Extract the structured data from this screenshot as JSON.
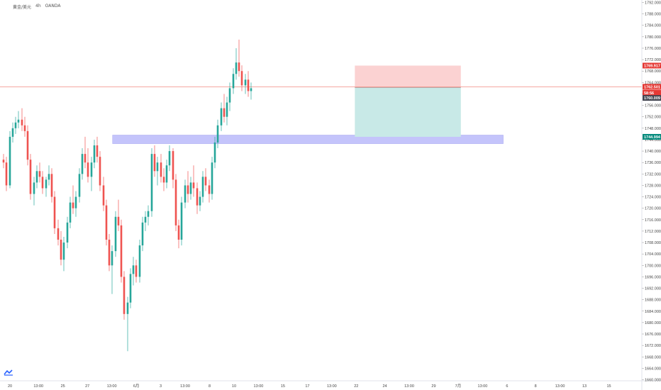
{
  "symbol": {
    "name": "黄金/美元",
    "interval": "4h",
    "source": "OANDA"
  },
  "colors": {
    "up": "#26a69a",
    "down": "#ef5350",
    "zone": "#c4c4fb",
    "risk": "#fbd2d2",
    "reward": "#c8e9e7",
    "price_line": "#f28b82",
    "axis_line": "#e0e3eb",
    "tag_red": "#e53935",
    "tag_green": "#00897b",
    "tag_dark": "#434651"
  },
  "chart_data": {
    "type": "candlestick",
    "y_axis": {
      "ylim": [
        1660,
        1792
      ],
      "ticks": [
        "1792.000",
        "1788.000",
        "1784.000",
        "1780.000",
        "1776.000",
        "1772.000",
        "1768.000",
        "1764.000",
        "1760.000",
        "1756.000",
        "1752.000",
        "1748.000",
        "1744.000",
        "1740.000",
        "1736.000",
        "1732.000",
        "1728.000",
        "1724.000",
        "1720.000",
        "1716.000",
        "1712.000",
        "1708.000",
        "1704.000",
        "1700.000",
        "1696.000",
        "1692.000",
        "1688.000",
        "1684.000",
        "1680.000",
        "1676.000",
        "1672.000",
        "1668.000",
        "1664.000",
        "1660.000"
      ]
    },
    "x_axis": {
      "ticks": [
        {
          "label": "20",
          "bar": 1
        },
        {
          "label": "13:00",
          "bar": 8
        },
        {
          "label": "25",
          "bar": 14
        },
        {
          "label": "27",
          "bar": 20
        },
        {
          "label": "13:00",
          "bar": 26
        },
        {
          "label": "6月",
          "bar": 32
        },
        {
          "label": "3",
          "bar": 38
        },
        {
          "label": "13:00",
          "bar": 44
        },
        {
          "label": "8",
          "bar": 50
        },
        {
          "label": "10",
          "bar": 56
        },
        {
          "label": "13:00",
          "bar": 62
        },
        {
          "label": "15",
          "bar": 68
        },
        {
          "label": "17",
          "bar": 74
        },
        {
          "label": "13:00",
          "bar": 80
        },
        {
          "label": "22",
          "bar": 86
        },
        {
          "label": "24",
          "bar": 93
        },
        {
          "label": "13:00",
          "bar": 99
        },
        {
          "label": "29",
          "bar": 105
        },
        {
          "label": "7月",
          "bar": 111
        },
        {
          "label": "13:00",
          "bar": 117
        },
        {
          "label": "6",
          "bar": 123
        },
        {
          "label": "8",
          "bar": 130
        },
        {
          "label": "13:00",
          "bar": 136
        },
        {
          "label": "13",
          "bar": 142
        },
        {
          "label": "15",
          "bar": 148
        }
      ]
    },
    "candles": [
      [
        1737,
        1739,
        1734,
        1736
      ],
      [
        1736,
        1738,
        1726,
        1728
      ],
      [
        1728,
        1747,
        1727,
        1745
      ],
      [
        1745,
        1750,
        1743,
        1748
      ],
      [
        1748,
        1752,
        1746,
        1750
      ],
      [
        1750,
        1754,
        1748,
        1751
      ],
      [
        1751,
        1755,
        1747,
        1749
      ],
      [
        1749,
        1752,
        1745,
        1747
      ],
      [
        1747,
        1749,
        1735,
        1737
      ],
      [
        1737,
        1739,
        1723,
        1725
      ],
      [
        1725,
        1731,
        1721,
        1729
      ],
      [
        1729,
        1735,
        1727,
        1733
      ],
      [
        1733,
        1736,
        1729,
        1731
      ],
      [
        1731,
        1733,
        1725,
        1727
      ],
      [
        1727,
        1731,
        1724,
        1730
      ],
      [
        1730,
        1735,
        1728,
        1732
      ],
      [
        1732,
        1734,
        1722,
        1724
      ],
      [
        1724,
        1726,
        1711,
        1713
      ],
      [
        1713,
        1716,
        1707,
        1709
      ],
      [
        1709,
        1712,
        1700,
        1702
      ],
      [
        1702,
        1710,
        1698,
        1708
      ],
      [
        1708,
        1717,
        1706,
        1715
      ],
      [
        1715,
        1724,
        1713,
        1722
      ],
      [
        1722,
        1728,
        1718,
        1720
      ],
      [
        1720,
        1726,
        1717,
        1724
      ],
      [
        1724,
        1734,
        1722,
        1732
      ],
      [
        1732,
        1741,
        1730,
        1739
      ],
      [
        1739,
        1745,
        1734,
        1736
      ],
      [
        1736,
        1741,
        1729,
        1731
      ],
      [
        1731,
        1738,
        1726,
        1736
      ],
      [
        1736,
        1744,
        1734,
        1742
      ],
      [
        1742,
        1745,
        1736,
        1738
      ],
      [
        1738,
        1740,
        1726,
        1728
      ],
      [
        1728,
        1731,
        1719,
        1721
      ],
      [
        1721,
        1723,
        1707,
        1709
      ],
      [
        1709,
        1711,
        1698,
        1700
      ],
      [
        1700,
        1707,
        1690,
        1705
      ],
      [
        1705,
        1719,
        1703,
        1717
      ],
      [
        1717,
        1723,
        1712,
        1714
      ],
      [
        1714,
        1716,
        1694,
        1696
      ],
      [
        1696,
        1698,
        1681,
        1683
      ],
      [
        1683,
        1689,
        1670,
        1687
      ],
      [
        1687,
        1699,
        1685,
        1697
      ],
      [
        1697,
        1703,
        1693,
        1700
      ],
      [
        1700,
        1702,
        1694,
        1696
      ],
      [
        1696,
        1709,
        1694,
        1707
      ],
      [
        1707,
        1717,
        1705,
        1715
      ],
      [
        1715,
        1719,
        1712,
        1717
      ],
      [
        1717,
        1721,
        1714,
        1719
      ],
      [
        1719,
        1741,
        1717,
        1739
      ],
      [
        1739,
        1742,
        1731,
        1733
      ],
      [
        1733,
        1738,
        1728,
        1736
      ],
      [
        1736,
        1739,
        1729,
        1731
      ],
      [
        1731,
        1734,
        1726,
        1729
      ],
      [
        1729,
        1737,
        1727,
        1735
      ],
      [
        1735,
        1742,
        1733,
        1740
      ],
      [
        1740,
        1741,
        1727,
        1730
      ],
      [
        1730,
        1732,
        1712,
        1714
      ],
      [
        1714,
        1716,
        1706,
        1709
      ],
      [
        1709,
        1724,
        1707,
        1722
      ],
      [
        1722,
        1730,
        1720,
        1728
      ],
      [
        1728,
        1733,
        1722,
        1725
      ],
      [
        1725,
        1731,
        1723,
        1729
      ],
      [
        1729,
        1735,
        1724,
        1727
      ],
      [
        1727,
        1729,
        1718,
        1721
      ],
      [
        1721,
        1726,
        1719,
        1724
      ],
      [
        1724,
        1733,
        1722,
        1731
      ],
      [
        1731,
        1734,
        1726,
        1728
      ],
      [
        1728,
        1730,
        1722,
        1725
      ],
      [
        1725,
        1738,
        1723,
        1736
      ],
      [
        1736,
        1745,
        1734,
        1743
      ],
      [
        1743,
        1751,
        1741,
        1749
      ],
      [
        1749,
        1757,
        1747,
        1755
      ],
      [
        1755,
        1760,
        1750,
        1752
      ],
      [
        1752,
        1759,
        1749,
        1757
      ],
      [
        1757,
        1764,
        1754,
        1762
      ],
      [
        1762,
        1769,
        1760,
        1767
      ],
      [
        1767,
        1776,
        1765,
        1771
      ],
      [
        1771,
        1779,
        1766,
        1768
      ],
      [
        1768,
        1770,
        1761,
        1763
      ],
      [
        1763,
        1767,
        1760,
        1765
      ],
      [
        1765,
        1768,
        1759,
        1761
      ],
      [
        1761,
        1764,
        1758,
        1762
      ]
    ],
    "candle_x_offsets": [
      0,
      4,
      9,
      13,
      17,
      21,
      26,
      30,
      34,
      38,
      43,
      47,
      51,
      55,
      60,
      64,
      68,
      72,
      77,
      81,
      85,
      90,
      94,
      98,
      102,
      107,
      111,
      115,
      119,
      124,
      128,
      132,
      136,
      141,
      145,
      149,
      153,
      158,
      162,
      166,
      170,
      175,
      179,
      183,
      187,
      192,
      196,
      200,
      204,
      209,
      213,
      217,
      222,
      226,
      230,
      234,
      239,
      243,
      247,
      251,
      256,
      260,
      264,
      268,
      273,
      277,
      281,
      285,
      290,
      294,
      298,
      302,
      307,
      311,
      315,
      319,
      324,
      328,
      332,
      336,
      341,
      345,
      349
    ],
    "zone": {
      "top": 1745.6,
      "bottom": 1742.6,
      "from_bar": 36,
      "to_bar": 165
    },
    "position": {
      "entry": 1762.2,
      "stop": 1769.917,
      "target": 1744.994,
      "from_bar": 116,
      "to_bar": 151
    },
    "price_line": 1762.501,
    "price_tags": [
      {
        "label": "1769.917",
        "value": 1769.917,
        "color": "tag_red"
      },
      {
        "label": "1762.501",
        "value": 1762.501,
        "color": "tag_red"
      },
      {
        "label": "58:56",
        "value": 1760.4,
        "color": "tag_red"
      },
      {
        "label": "1760.009",
        "value": 1758.6,
        "color": "tag_dark"
      },
      {
        "label": "1744.994",
        "value": 1744.994,
        "color": "tag_green"
      }
    ]
  }
}
